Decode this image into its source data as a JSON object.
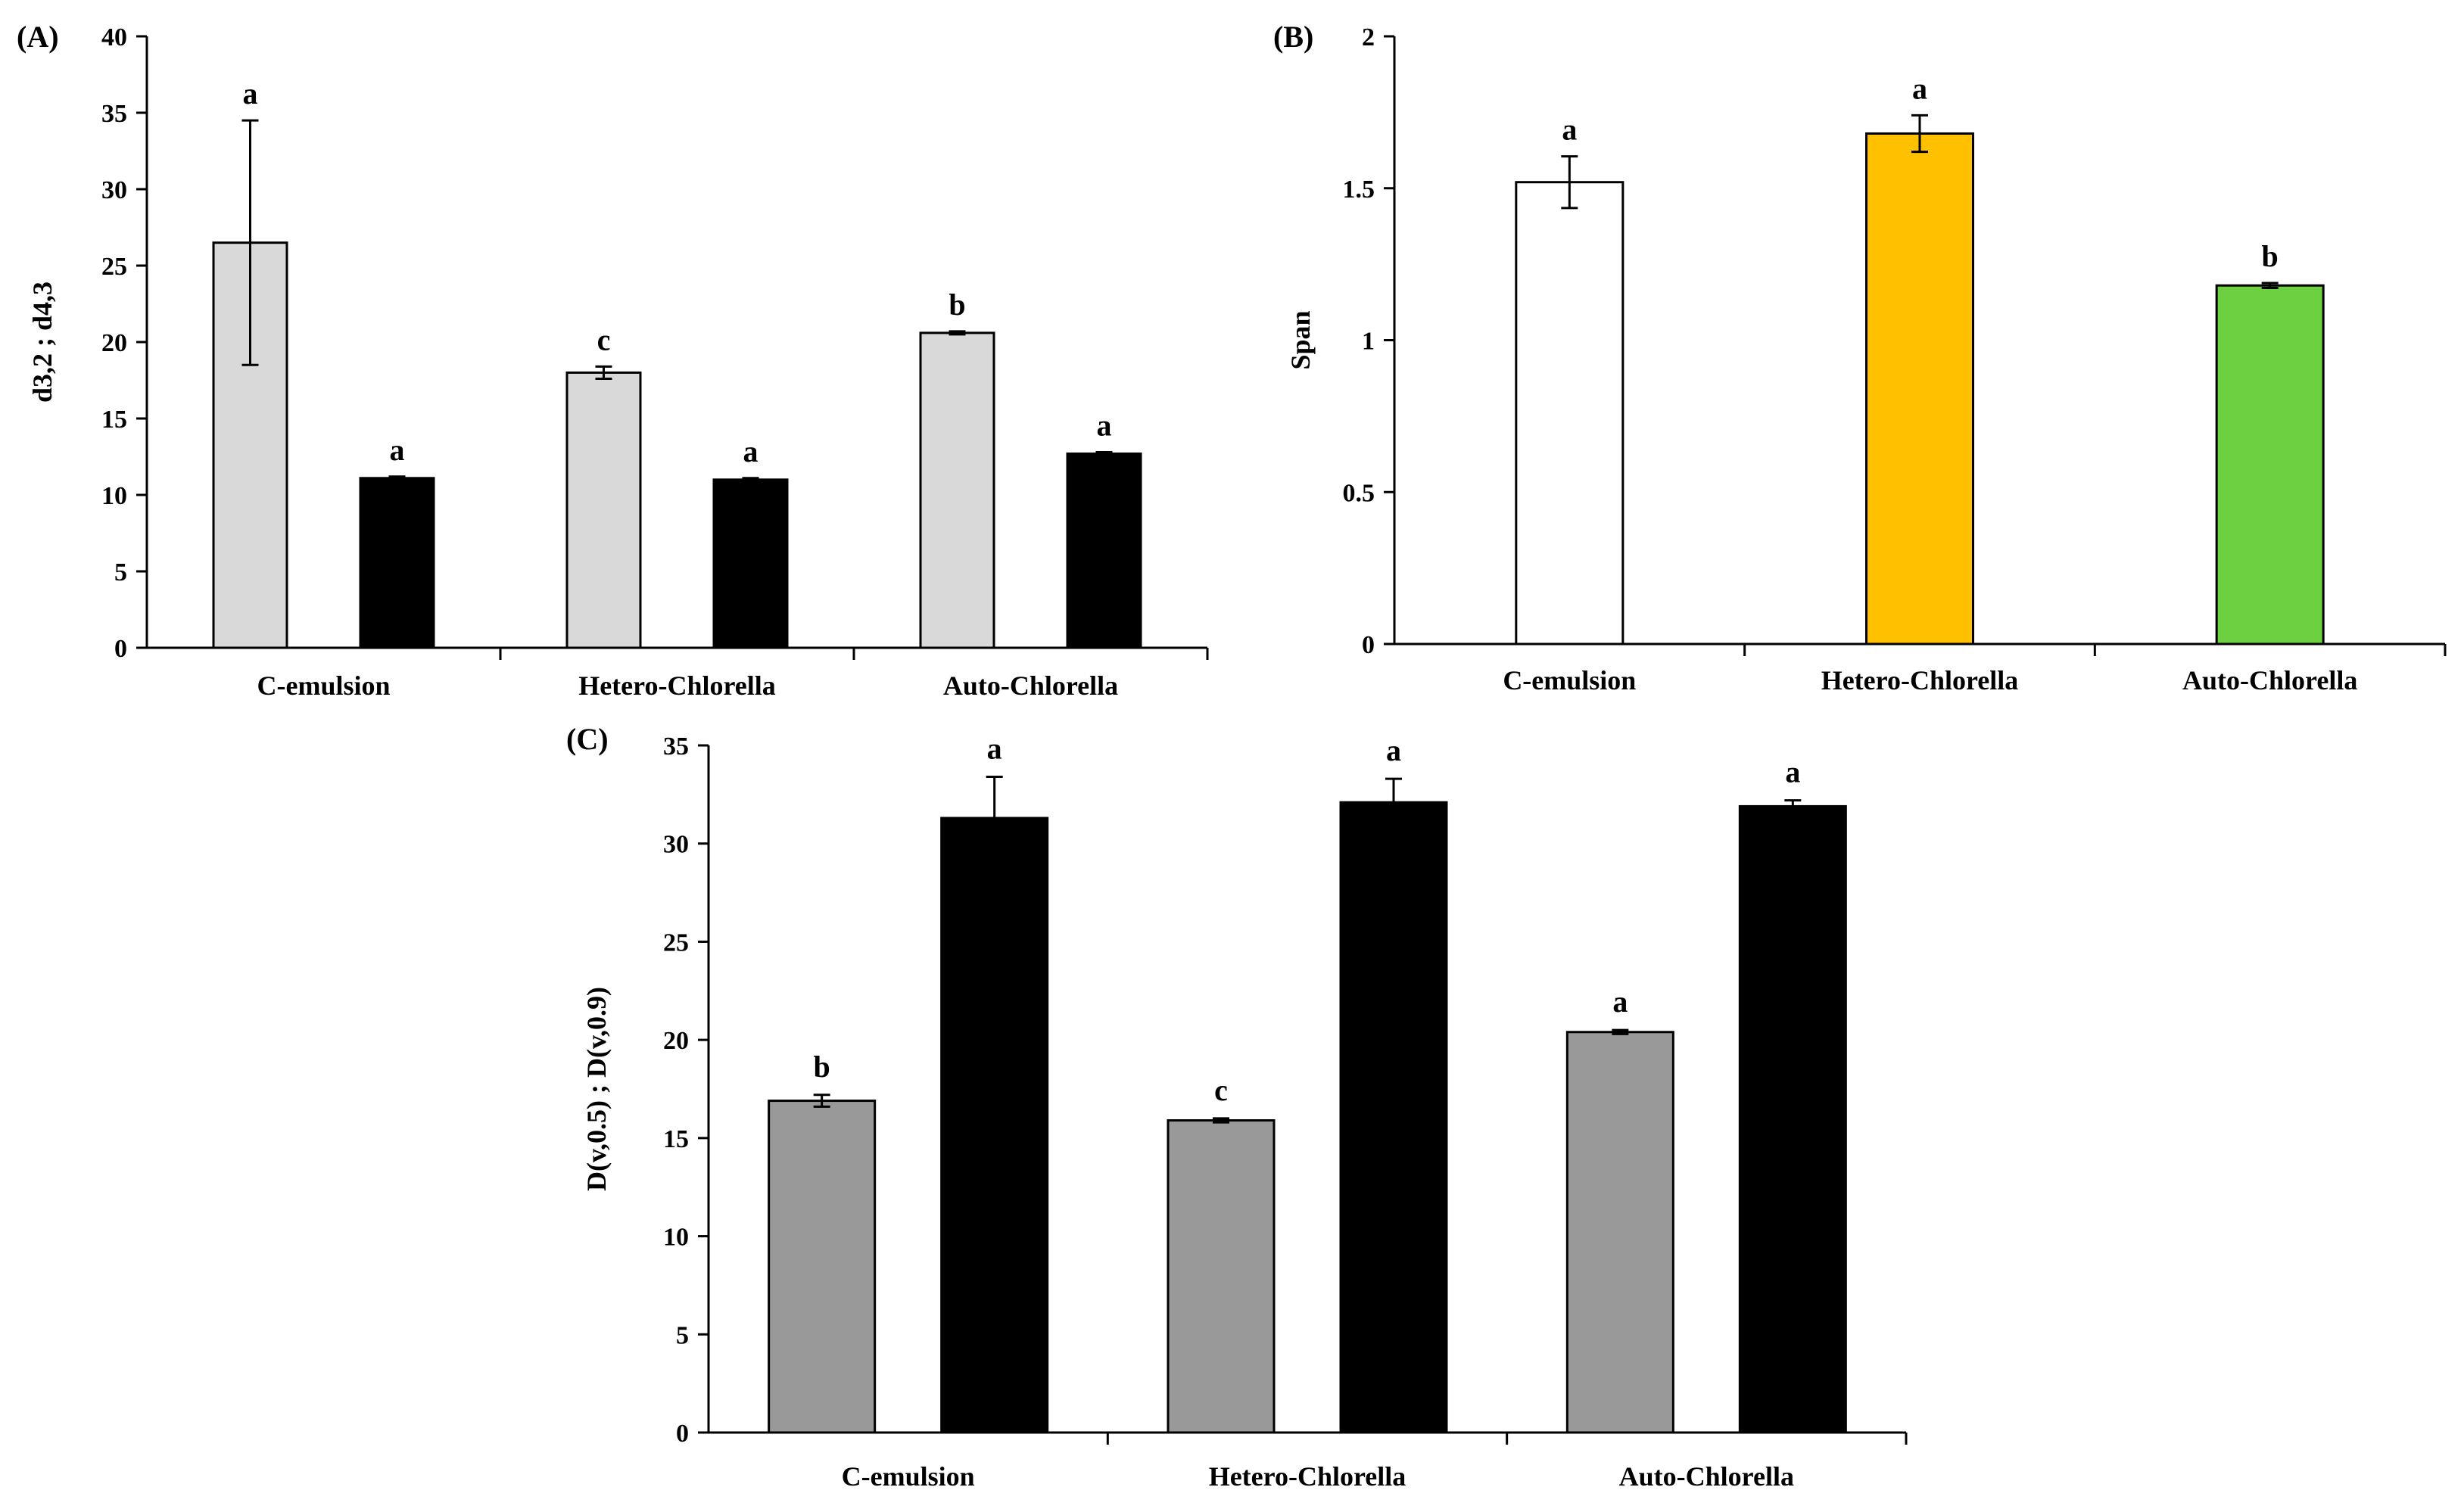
{
  "chart_data": [
    {
      "id": "A",
      "panel_label": "(A)",
      "type": "bar",
      "ylabel": "d3,2 ; d4,3",
      "categories": [
        "C-emulsion",
        "Hetero-Chlorella",
        "Auto-Chlorella"
      ],
      "ylim": [
        0,
        40
      ],
      "yticks": [
        0,
        5,
        10,
        15,
        20,
        25,
        30,
        35,
        40
      ],
      "series": [
        {
          "name": "d3,2",
          "color": "#d9d9d9",
          "values": [
            26.5,
            18.0,
            20.6
          ],
          "errors": [
            8.0,
            0.4,
            0.1
          ],
          "letters": [
            "a",
            "c",
            "b"
          ]
        },
        {
          "name": "d4,3",
          "color": "#000000",
          "values": [
            11.1,
            11.0,
            12.7
          ],
          "errors": [
            0.1,
            0.1,
            0.1
          ],
          "letters": [
            "a",
            "a",
            "a"
          ]
        }
      ]
    },
    {
      "id": "B",
      "panel_label": "(B)",
      "type": "bar",
      "ylabel": "Span",
      "categories": [
        "C-emulsion",
        "Hetero-Chlorella",
        "Auto-Chlorella"
      ],
      "ylim": [
        0,
        2
      ],
      "yticks": [
        0,
        0.5,
        1,
        1.5,
        2
      ],
      "series": [
        {
          "name": "Span",
          "colors": [
            "#ffffff",
            "#ffc000",
            "#6dd040"
          ],
          "values": [
            1.52,
            1.68,
            1.18
          ],
          "errors": [
            0.085,
            0.06,
            0.008
          ],
          "letters": [
            "a",
            "a",
            "b"
          ]
        }
      ]
    },
    {
      "id": "C",
      "panel_label": "(C)",
      "type": "bar",
      "ylabel": "D(v,0.5) ; D(v,0.9)",
      "categories": [
        "C-emulsion",
        "Hetero-Chlorella",
        "Auto-Chlorella"
      ],
      "ylim": [
        0,
        35
      ],
      "yticks": [
        0,
        5,
        10,
        15,
        20,
        25,
        30,
        35
      ],
      "series": [
        {
          "name": "D(v,0.5)",
          "color": "#999999",
          "values": [
            16.9,
            15.9,
            20.4
          ],
          "errors": [
            0.3,
            0.1,
            0.1
          ],
          "letters": [
            "b",
            "c",
            "a"
          ]
        },
        {
          "name": "D(v,0.9)",
          "color": "#000000",
          "values": [
            31.3,
            32.1,
            31.9
          ],
          "errors": [
            2.1,
            1.2,
            0.3
          ],
          "letters": [
            "a",
            "a",
            "a"
          ]
        }
      ]
    }
  ]
}
